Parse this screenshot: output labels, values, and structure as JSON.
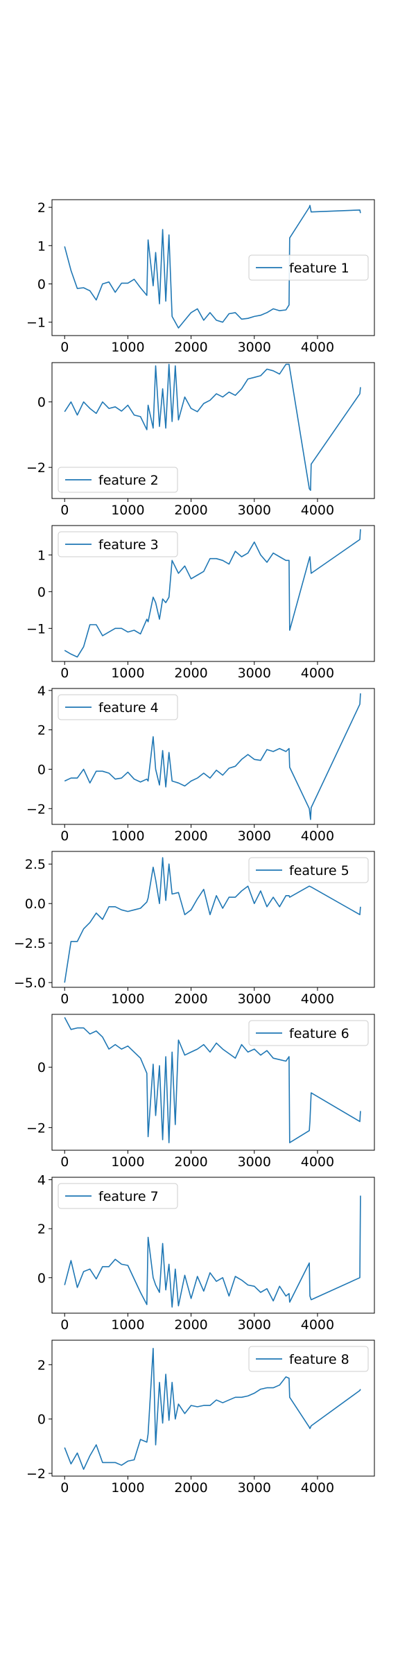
{
  "chart_data": [
    {
      "type": "line",
      "series": [
        {
          "name": "feature 1",
          "color": "#1f77b4"
        }
      ],
      "legend": "center-right",
      "xlim": [
        -200,
        4900
      ],
      "ylim": [
        -1.35,
        2.2
      ],
      "xticks": [
        "0",
        "1000",
        "2000",
        "3000",
        "4000"
      ],
      "xtick_values": [
        0,
        1000,
        2000,
        3000,
        4000
      ],
      "yticks": [
        "−1",
        "0",
        "1",
        "2"
      ],
      "ytick_values": [
        -1,
        0,
        1,
        2
      ],
      "grid": false,
      "x": [
        0,
        100,
        200,
        300,
        400,
        500,
        600,
        700,
        800,
        900,
        1000,
        1100,
        1200,
        1300,
        1320,
        1400,
        1440,
        1500,
        1550,
        1600,
        1650,
        1700,
        1800,
        1900,
        2000,
        2100,
        2200,
        2300,
        2400,
        2500,
        2600,
        2700,
        2800,
        2900,
        3000,
        3100,
        3200,
        3300,
        3400,
        3500,
        3550,
        3560,
        3870,
        3880,
        3900,
        4670,
        4680
      ],
      "y": [
        0.98,
        0.35,
        -0.12,
        -0.1,
        -0.18,
        -0.42,
        0.0,
        0.05,
        -0.22,
        0.02,
        0.02,
        0.12,
        -0.1,
        -0.3,
        1.15,
        -0.05,
        0.82,
        -0.52,
        1.42,
        -0.45,
        1.28,
        -0.85,
        -1.15,
        -0.95,
        -0.75,
        -0.65,
        -0.95,
        -0.75,
        -0.95,
        -1.0,
        -0.78,
        -0.75,
        -0.92,
        -0.9,
        -0.85,
        -0.82,
        -0.75,
        -0.65,
        -0.7,
        -0.68,
        -0.55,
        1.2,
        2.0,
        2.05,
        1.88,
        1.93,
        1.85
      ]
    },
    {
      "type": "line",
      "series": [
        {
          "name": "feature 2",
          "color": "#1f77b4"
        }
      ],
      "legend": "lower-left",
      "xlim": [
        -200,
        4900
      ],
      "ylim": [
        -2.95,
        1.2
      ],
      "xticks": [
        "0",
        "1000",
        "2000",
        "3000",
        "4000"
      ],
      "xtick_values": [
        0,
        1000,
        2000,
        3000,
        4000
      ],
      "yticks": [
        "−2",
        "0"
      ],
      "ytick_values": [
        -2,
        0
      ],
      "grid": false,
      "x": [
        0,
        100,
        200,
        300,
        400,
        500,
        600,
        700,
        800,
        900,
        1000,
        1100,
        1200,
        1300,
        1320,
        1400,
        1440,
        1500,
        1550,
        1600,
        1650,
        1700,
        1750,
        1800,
        1900,
        2000,
        2100,
        2200,
        2300,
        2400,
        2500,
        2600,
        2700,
        2800,
        2900,
        3000,
        3100,
        3200,
        3300,
        3400,
        3500,
        3550,
        3870,
        3890,
        3900,
        4670,
        4680
      ],
      "y": [
        -0.3,
        0.0,
        -0.4,
        0.0,
        -0.2,
        -0.35,
        0.0,
        -0.2,
        -0.15,
        -0.28,
        -0.1,
        -0.4,
        -0.45,
        -0.85,
        -0.1,
        -0.8,
        1.1,
        -0.75,
        0.4,
        -0.8,
        1.15,
        -0.6,
        1.1,
        -0.55,
        0.15,
        -0.2,
        -0.3,
        -0.05,
        0.05,
        0.25,
        0.15,
        0.3,
        0.2,
        0.4,
        0.7,
        0.75,
        0.8,
        1.0,
        0.95,
        0.85,
        1.15,
        1.15,
        -2.65,
        -2.7,
        -1.9,
        0.25,
        0.45
      ]
    },
    {
      "type": "line",
      "series": [
        {
          "name": "feature 3",
          "color": "#1f77b4"
        }
      ],
      "legend": "upper-left",
      "xlim": [
        -200,
        4900
      ],
      "ylim": [
        -1.9,
        1.8
      ],
      "xticks": [
        "0",
        "1000",
        "2000",
        "3000",
        "4000"
      ],
      "xtick_values": [
        0,
        1000,
        2000,
        3000,
        4000
      ],
      "yticks": [
        "−1",
        "0",
        "1"
      ],
      "ytick_values": [
        -1,
        0,
        1
      ],
      "grid": false,
      "x": [
        0,
        100,
        200,
        300,
        400,
        500,
        600,
        700,
        800,
        900,
        1000,
        1100,
        1200,
        1300,
        1320,
        1400,
        1440,
        1500,
        1550,
        1600,
        1650,
        1700,
        1800,
        1900,
        2000,
        2100,
        2200,
        2300,
        2400,
        2500,
        2600,
        2700,
        2800,
        2900,
        3000,
        3100,
        3200,
        3300,
        3400,
        3500,
        3550,
        3560,
        3870,
        3880,
        3900,
        4670,
        4680
      ],
      "y": [
        -1.6,
        -1.7,
        -1.78,
        -1.5,
        -0.9,
        -0.9,
        -1.2,
        -1.1,
        -1.0,
        -1.0,
        -1.1,
        -1.05,
        -1.15,
        -0.75,
        -0.82,
        -0.15,
        -0.3,
        -0.75,
        -0.2,
        -0.3,
        -0.15,
        0.85,
        0.5,
        0.7,
        0.35,
        0.45,
        0.55,
        0.9,
        0.9,
        0.85,
        0.75,
        1.1,
        0.95,
        1.05,
        1.35,
        1.0,
        0.8,
        1.05,
        0.95,
        0.85,
        0.85,
        -1.05,
        0.9,
        0.95,
        0.5,
        1.42,
        1.7
      ]
    },
    {
      "type": "line",
      "series": [
        {
          "name": "feature 4",
          "color": "#1f77b4"
        }
      ],
      "legend": "upper-left",
      "xlim": [
        -200,
        4900
      ],
      "ylim": [
        -2.8,
        4.1
      ],
      "xticks": [
        "0",
        "1000",
        "2000",
        "3000",
        "4000"
      ],
      "xtick_values": [
        0,
        1000,
        2000,
        3000,
        4000
      ],
      "yticks": [
        "−2",
        "0",
        "2",
        "4"
      ],
      "ytick_values": [
        -2,
        0,
        2,
        4
      ],
      "grid": false,
      "x": [
        0,
        100,
        200,
        300,
        400,
        500,
        600,
        700,
        800,
        900,
        1000,
        1100,
        1200,
        1300,
        1320,
        1400,
        1440,
        1500,
        1550,
        1600,
        1650,
        1700,
        1800,
        1900,
        2000,
        2100,
        2200,
        2300,
        2400,
        2500,
        2600,
        2700,
        2800,
        2900,
        3000,
        3100,
        3200,
        3300,
        3400,
        3500,
        3550,
        3560,
        3870,
        3890,
        3900,
        4670,
        4680
      ],
      "y": [
        -0.6,
        -0.45,
        -0.45,
        0.0,
        -0.7,
        -0.1,
        -0.1,
        -0.2,
        -0.5,
        -0.45,
        -0.15,
        -0.5,
        -0.65,
        -0.5,
        -0.6,
        1.65,
        0.0,
        -0.8,
        0.95,
        -0.9,
        0.85,
        -0.6,
        -0.7,
        -0.85,
        -0.6,
        -0.45,
        -0.2,
        -0.45,
        -0.05,
        -0.3,
        0.05,
        0.15,
        0.5,
        0.75,
        0.5,
        0.45,
        1.0,
        0.9,
        1.05,
        0.9,
        1.05,
        0.1,
        -2.0,
        -2.55,
        -1.95,
        3.3,
        3.85
      ]
    },
    {
      "type": "line",
      "series": [
        {
          "name": "feature 5",
          "color": "#1f77b4"
        }
      ],
      "legend": "upper-right",
      "xlim": [
        -200,
        4900
      ],
      "ylim": [
        -5.3,
        3.3
      ],
      "xticks": [
        "0",
        "1000",
        "2000",
        "3000",
        "4000"
      ],
      "xtick_values": [
        0,
        1000,
        2000,
        3000,
        4000
      ],
      "yticks": [
        "−5.0",
        "−2.5",
        "0.0",
        "2.5"
      ],
      "ytick_values": [
        -5.0,
        -2.5,
        0.0,
        2.5
      ],
      "grid": false,
      "x": [
        0,
        100,
        200,
        300,
        400,
        500,
        600,
        700,
        800,
        900,
        1000,
        1100,
        1200,
        1300,
        1320,
        1400,
        1440,
        1500,
        1550,
        1600,
        1650,
        1700,
        1800,
        1900,
        2000,
        2100,
        2200,
        2300,
        2400,
        2500,
        2600,
        2700,
        2800,
        2900,
        3000,
        3100,
        3200,
        3300,
        3400,
        3500,
        3550,
        3560,
        3870,
        3900,
        4670,
        4680
      ],
      "y": [
        -5.0,
        -2.4,
        -2.4,
        -1.6,
        -1.2,
        -0.6,
        -1.0,
        -0.2,
        -0.2,
        -0.4,
        -0.5,
        -0.4,
        -0.3,
        0.1,
        0.35,
        2.3,
        1.5,
        0.0,
        2.9,
        0.2,
        2.5,
        0.6,
        0.7,
        -0.7,
        -0.4,
        0.3,
        0.9,
        -0.7,
        0.5,
        -0.3,
        0.4,
        0.4,
        0.8,
        1.1,
        0.0,
        0.8,
        -0.2,
        0.4,
        -0.2,
        0.5,
        0.5,
        0.4,
        1.1,
        1.05,
        -0.7,
        -0.2
      ]
    },
    {
      "type": "line",
      "series": [
        {
          "name": "feature 6",
          "color": "#1f77b4"
        }
      ],
      "legend": "upper-right",
      "xlim": [
        -200,
        4900
      ],
      "ylim": [
        -2.75,
        1.75
      ],
      "xticks": [
        "0",
        "1000",
        "2000",
        "3000",
        "4000"
      ],
      "xtick_values": [
        0,
        1000,
        2000,
        3000,
        4000
      ],
      "yticks": [
        "−2",
        "0"
      ],
      "ytick_values": [
        -2,
        0
      ],
      "grid": false,
      "x": [
        0,
        100,
        200,
        300,
        400,
        500,
        600,
        700,
        800,
        900,
        1000,
        1100,
        1200,
        1300,
        1320,
        1400,
        1440,
        1500,
        1550,
        1600,
        1650,
        1700,
        1750,
        1800,
        1900,
        2000,
        2100,
        2200,
        2300,
        2400,
        2500,
        2600,
        2700,
        2800,
        2900,
        3000,
        3100,
        3200,
        3300,
        3400,
        3500,
        3550,
        3560,
        3870,
        3880,
        3900,
        4670,
        4680
      ],
      "y": [
        1.65,
        1.25,
        1.3,
        1.3,
        1.1,
        1.2,
        1.0,
        0.6,
        0.75,
        0.6,
        0.7,
        0.5,
        0.3,
        -0.2,
        -2.3,
        0.1,
        -1.6,
        0.05,
        -2.4,
        0.35,
        -2.5,
        0.5,
        -1.9,
        0.9,
        0.4,
        0.5,
        0.6,
        0.75,
        0.5,
        0.8,
        0.6,
        0.45,
        0.3,
        0.75,
        0.5,
        0.6,
        0.4,
        0.55,
        0.3,
        0.25,
        0.2,
        0.35,
        -2.5,
        -2.1,
        -1.8,
        -0.85,
        -1.8,
        -1.45
      ]
    },
    {
      "type": "line",
      "series": [
        {
          "name": "feature 7",
          "color": "#1f77b4"
        }
      ],
      "legend": "upper-left",
      "xlim": [
        -200,
        4900
      ],
      "ylim": [
        -1.45,
        4.1
      ],
      "xticks": [
        "0",
        "1000",
        "2000",
        "3000",
        "4000"
      ],
      "xtick_values": [
        0,
        1000,
        2000,
        3000,
        4000
      ],
      "yticks": [
        "0",
        "2",
        "4"
      ],
      "ytick_values": [
        0,
        2,
        4
      ],
      "grid": false,
      "x": [
        0,
        100,
        200,
        300,
        400,
        500,
        600,
        700,
        800,
        900,
        1000,
        1100,
        1200,
        1300,
        1320,
        1400,
        1440,
        1500,
        1550,
        1600,
        1650,
        1700,
        1750,
        1800,
        1900,
        2000,
        2100,
        2200,
        2300,
        2400,
        2500,
        2600,
        2700,
        2800,
        2900,
        3000,
        3100,
        3200,
        3300,
        3400,
        3500,
        3550,
        3560,
        3870,
        3880,
        3900,
        4670,
        4680
      ],
      "y": [
        -0.3,
        0.7,
        -0.4,
        0.25,
        0.35,
        -0.05,
        0.45,
        0.45,
        0.75,
        0.55,
        0.5,
        -0.05,
        -0.6,
        -1.1,
        1.65,
        0.0,
        -0.3,
        -0.6,
        1.4,
        -0.5,
        0.55,
        -1.2,
        0.35,
        -1.15,
        0.1,
        -0.85,
        0.05,
        -0.55,
        0.2,
        -0.15,
        0.0,
        -0.75,
        0.05,
        -0.1,
        -0.3,
        -0.35,
        -0.6,
        -0.45,
        -0.95,
        -0.35,
        -0.75,
        -0.65,
        -1.0,
        0.6,
        -0.75,
        -0.9,
        0.0,
        3.35
      ]
    },
    {
      "type": "line",
      "series": [
        {
          "name": "feature 8",
          "color": "#1f77b4"
        }
      ],
      "legend": "upper-right",
      "xlim": [
        -200,
        4900
      ],
      "ylim": [
        -2.1,
        2.9
      ],
      "xticks": [
        "0",
        "1000",
        "2000",
        "3000",
        "4000"
      ],
      "xtick_values": [
        0,
        1000,
        2000,
        3000,
        4000
      ],
      "yticks": [
        "−2",
        "0",
        "2"
      ],
      "ytick_values": [
        -2,
        0,
        2
      ],
      "grid": false,
      "x": [
        0,
        100,
        200,
        300,
        400,
        500,
        600,
        700,
        800,
        900,
        1000,
        1100,
        1200,
        1300,
        1320,
        1400,
        1440,
        1500,
        1550,
        1600,
        1650,
        1700,
        1750,
        1800,
        1900,
        2000,
        2100,
        2200,
        2300,
        2400,
        2500,
        2600,
        2700,
        2800,
        2900,
        3000,
        3100,
        3200,
        3300,
        3400,
        3500,
        3550,
        3560,
        3870,
        3880,
        3900,
        4670,
        4680
      ],
      "y": [
        -1.05,
        -1.65,
        -1.25,
        -1.85,
        -1.35,
        -0.95,
        -1.6,
        -1.6,
        -1.6,
        -1.7,
        -1.55,
        -1.5,
        -0.75,
        -0.85,
        -0.55,
        2.6,
        -0.95,
        1.35,
        -0.15,
        1.65,
        -0.05,
        1.35,
        0.0,
        0.55,
        0.2,
        0.5,
        0.45,
        0.5,
        0.5,
        0.7,
        0.6,
        0.7,
        0.8,
        0.8,
        0.85,
        0.95,
        1.1,
        1.15,
        1.15,
        1.25,
        1.55,
        1.5,
        0.8,
        -0.3,
        -0.35,
        -0.25,
        1.05,
        1.1
      ]
    }
  ]
}
